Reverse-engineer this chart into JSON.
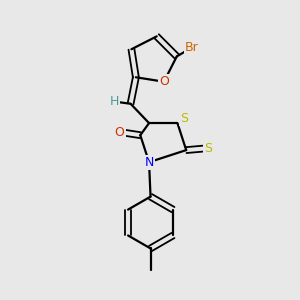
{
  "background_color": "#e8e8e8",
  "atom_colors": {
    "C": "#000000",
    "H": "#4a9a9a",
    "O": "#cc3300",
    "N": "#0000ff",
    "S": "#bbbb00",
    "Br": "#cc6600"
  },
  "bond_color": "#000000",
  "figsize": [
    3.0,
    3.0
  ],
  "dpi": 100
}
